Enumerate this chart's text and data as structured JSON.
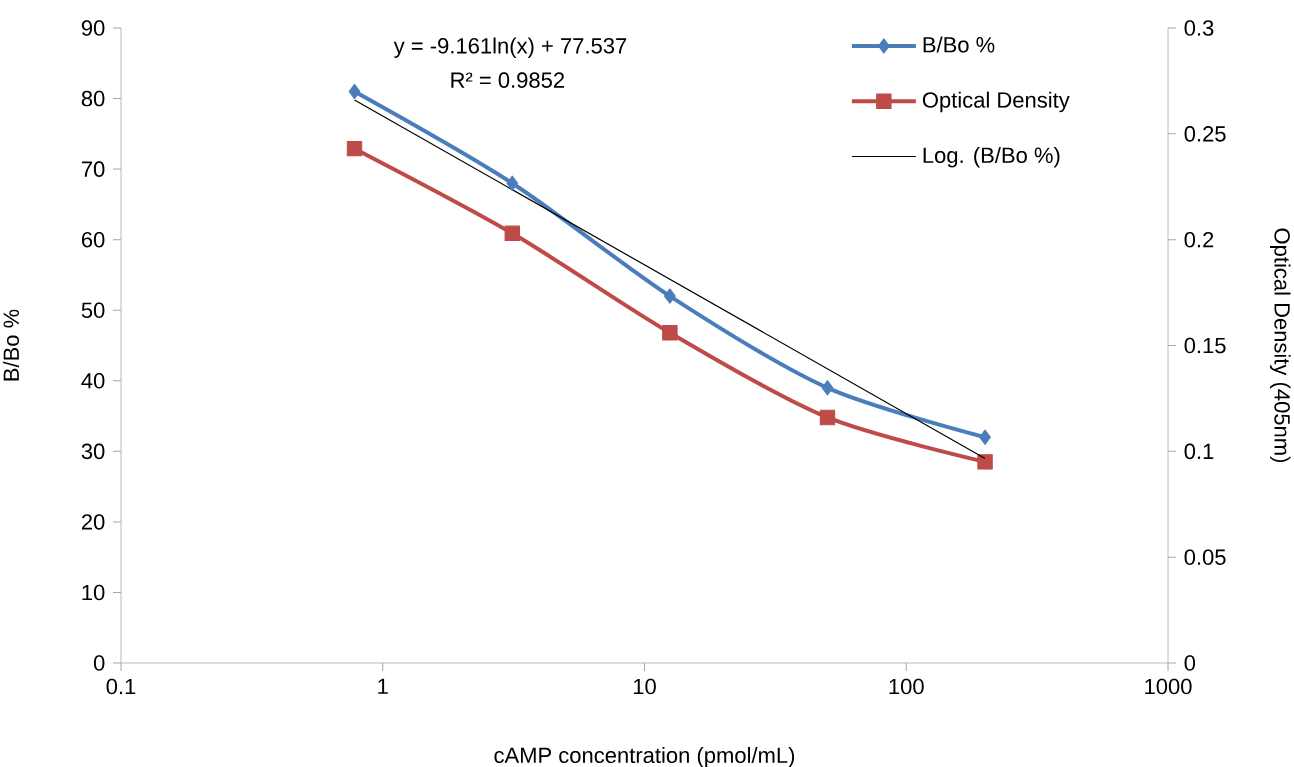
{
  "chart_data": {
    "type": "line",
    "xlabel": "cAMP concentration (pmol/mL)",
    "ylabel": "B/Bo %",
    "y2label": "Optical Density (405nm)",
    "x": [
      0.78,
      3.125,
      12.5,
      50,
      200
    ],
    "series": [
      {
        "name": "B/Bo %",
        "color": "#4a7ebb",
        "values": [
          81,
          68,
          52,
          39,
          32
        ],
        "marker": "diamond"
      },
      {
        "name": "Optical Density",
        "color": "#be4b48",
        "values": [
          0.243,
          0.203,
          0.156,
          0.116,
          0.095
        ],
        "marker": "square",
        "axis": "y2"
      },
      {
        "name": "Log. (B/Bo %)",
        "color": "#000000",
        "type": "line",
        "x": [
          0.78,
          200
        ],
        "values": [
          79.8,
          29.0
        ],
        "marker": "none"
      }
    ],
    "log": "x",
    "xlim": [
      0.1,
      1000
    ],
    "xticks": [
      0.1,
      1,
      10,
      100,
      1000
    ],
    "ylim": [
      0,
      90
    ],
    "yticks": [
      0,
      10,
      20,
      30,
      40,
      50,
      60,
      70,
      80,
      90
    ],
    "y2lim": [
      0,
      0.3
    ],
    "y2ticks": [
      0,
      0.05,
      0.1,
      0.15,
      0.2,
      0.25,
      0.3
    ],
    "legend": "top right",
    "annotations": [
      "y = -9.161ln(x) + 77.537",
      "R² = 0.9852"
    ]
  }
}
